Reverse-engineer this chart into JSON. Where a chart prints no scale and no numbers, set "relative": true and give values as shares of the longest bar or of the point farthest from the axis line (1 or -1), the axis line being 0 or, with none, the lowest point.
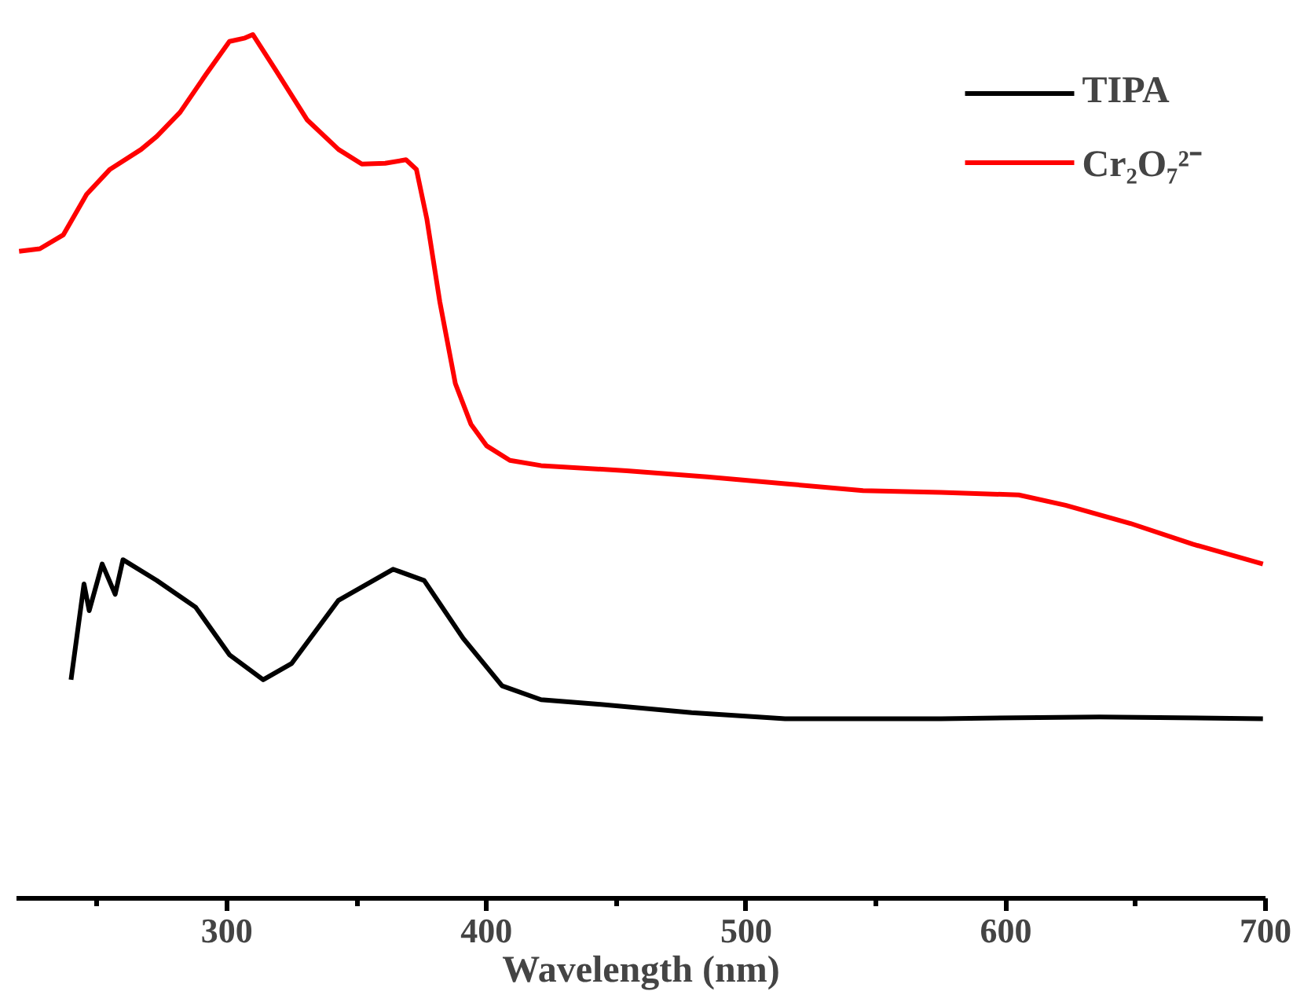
{
  "chart_data": {
    "type": "line",
    "xlabel": "Wavelength (nm)",
    "relative": true,
    "xlim": [
      219,
      700
    ],
    "xticks": [
      300,
      400,
      500,
      600,
      700
    ],
    "legend": "top right",
    "grid": false,
    "series": [
      {
        "name": "TIPA",
        "color": "#000000",
        "x": [
          240,
          245,
          247,
          252,
          257,
          260,
          273,
          288,
          301,
          314,
          325,
          343,
          364,
          376,
          391,
          406,
          421,
          442,
          479,
          515,
          575,
          636,
          699
        ],
        "values": [
          0.253,
          0.364,
          0.333,
          0.387,
          0.352,
          0.392,
          0.368,
          0.337,
          0.282,
          0.253,
          0.272,
          0.345,
          0.381,
          0.368,
          0.301,
          0.246,
          0.23,
          0.225,
          0.215,
          0.208,
          0.208,
          0.21,
          0.208
        ]
      },
      {
        "name": "Cr₂O₇²⁻",
        "color": "#ff0000",
        "x": [
          220,
          228,
          237,
          246,
          255,
          267,
          273,
          282,
          292,
          301,
          307,
          310,
          319,
          331,
          343,
          352,
          361,
          369,
          373,
          377,
          382,
          388,
          394,
          400,
          409,
          421,
          454,
          485,
          515,
          545,
          575,
          605,
          623,
          648,
          672,
          699
        ],
        "values": [
          0.749,
          0.752,
          0.768,
          0.815,
          0.844,
          0.867,
          0.882,
          0.91,
          0.954,
          0.992,
          0.996,
          1.0,
          0.958,
          0.901,
          0.867,
          0.85,
          0.851,
          0.855,
          0.844,
          0.787,
          0.691,
          0.596,
          0.549,
          0.524,
          0.507,
          0.501,
          0.495,
          0.488,
          0.48,
          0.472,
          0.47,
          0.467,
          0.455,
          0.434,
          0.41,
          0.387
        ]
      }
    ]
  }
}
